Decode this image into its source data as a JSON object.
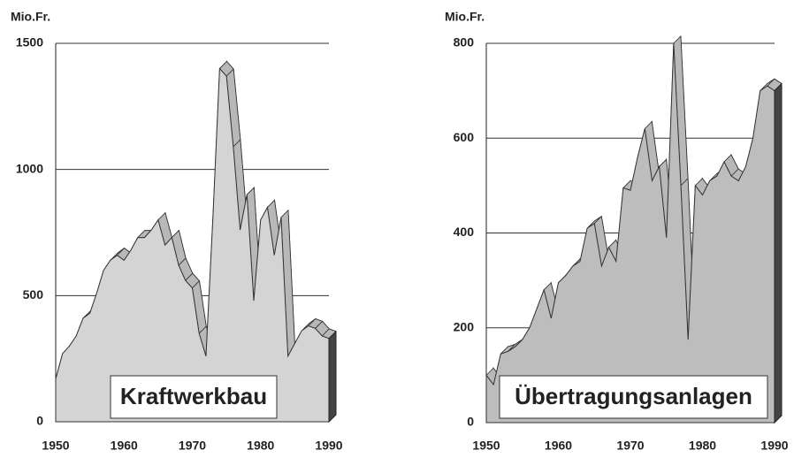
{
  "chart_data": [
    {
      "type": "area3d",
      "title": "Kraftwerkbau",
      "y_label": "Mio.Fr.",
      "x": [
        1950,
        1951,
        1952,
        1953,
        1954,
        1955,
        1956,
        1957,
        1958,
        1959,
        1960,
        1961,
        1962,
        1963,
        1964,
        1965,
        1966,
        1967,
        1968,
        1969,
        1970,
        1971,
        1972,
        1973,
        1974,
        1975,
        1976,
        1977,
        1978,
        1979,
        1980,
        1981,
        1982,
        1983,
        1984,
        1985,
        1986,
        1987,
        1988,
        1989,
        1990
      ],
      "values": [
        170,
        270,
        300,
        340,
        410,
        430,
        510,
        600,
        640,
        660,
        640,
        680,
        730,
        730,
        760,
        800,
        700,
        730,
        620,
        560,
        530,
        350,
        260,
        800,
        1400,
        1370,
        1090,
        760,
        900,
        480,
        800,
        850,
        660,
        810,
        260,
        310,
        360,
        380,
        370,
        340,
        330
      ],
      "color": "#d4d4d4",
      "xlim": [
        1950,
        1990
      ],
      "ylim": [
        0,
        1500
      ],
      "xticks": [
        1950,
        1960,
        1970,
        1980,
        1990
      ],
      "yticks": [
        0,
        500,
        1000,
        1500
      ],
      "grid": true
    },
    {
      "type": "area3d",
      "title": "Übertragungsanlagen",
      "y_label": "Mio.Fr.",
      "x": [
        1950,
        1951,
        1952,
        1953,
        1954,
        1955,
        1956,
        1957,
        1958,
        1959,
        1960,
        1961,
        1962,
        1963,
        1964,
        1965,
        1966,
        1967,
        1968,
        1969,
        1970,
        1971,
        1972,
        1973,
        1974,
        1975,
        1976,
        1977,
        1978,
        1979,
        1980,
        1981,
        1982,
        1983,
        1984,
        1985,
        1986,
        1987,
        1988,
        1989,
        1990
      ],
      "values": [
        100,
        80,
        145,
        150,
        160,
        175,
        200,
        240,
        280,
        220,
        295,
        310,
        330,
        340,
        410,
        420,
        330,
        370,
        340,
        495,
        490,
        560,
        620,
        510,
        540,
        390,
        800,
        500,
        175,
        500,
        480,
        510,
        520,
        550,
        520,
        510,
        540,
        600,
        700,
        710,
        700
      ],
      "color": "#bdbdbd",
      "xlim": [
        1950,
        1990
      ],
      "ylim": [
        0,
        800
      ],
      "xticks": [
        1950,
        1960,
        1970,
        1980,
        1990
      ],
      "yticks": [
        0,
        200,
        400,
        600,
        800
      ],
      "grid": true
    }
  ]
}
